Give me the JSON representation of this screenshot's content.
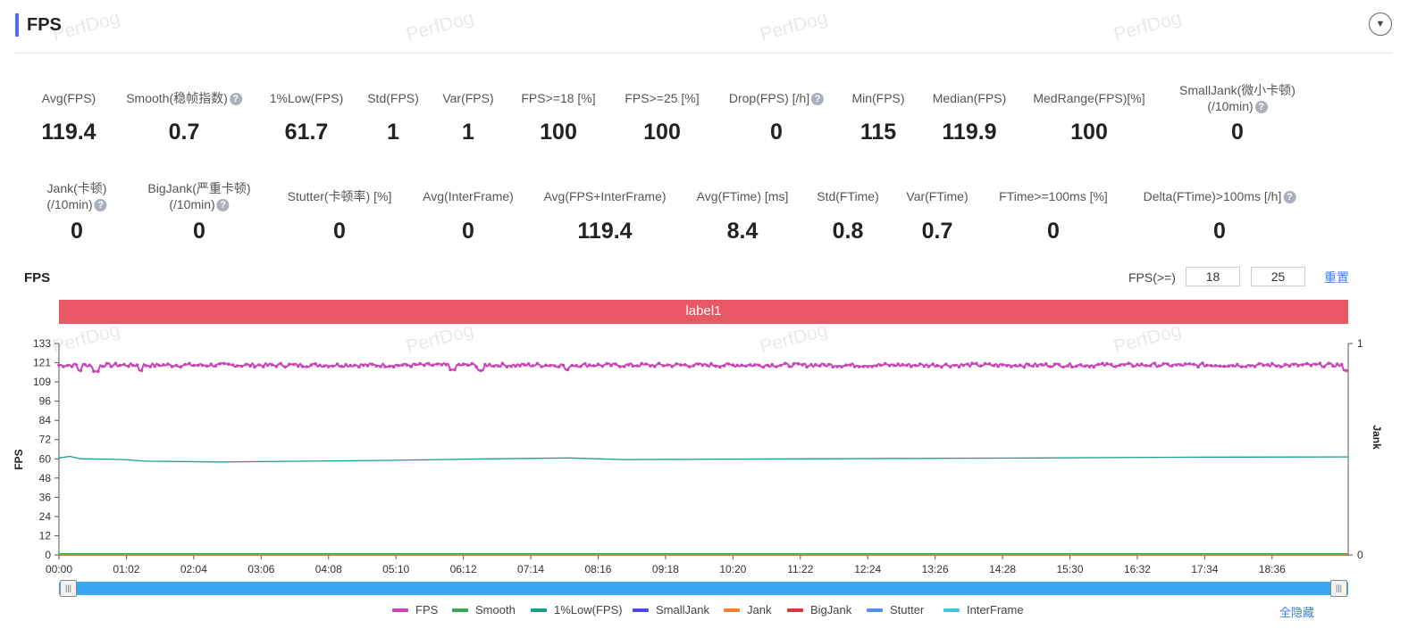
{
  "header": {
    "title": "FPS",
    "watermark": "PerfDog"
  },
  "metrics_row1": [
    {
      "label": "Avg(FPS)",
      "value": "119.4",
      "help": false
    },
    {
      "label": "Smooth(稳帧指数)",
      "value": "0.7",
      "help": true
    },
    {
      "label": "1%Low(FPS)",
      "value": "61.7",
      "help": false
    },
    {
      "label": "Std(FPS)",
      "value": "1",
      "help": false
    },
    {
      "label": "Var(FPS)",
      "value": "1",
      "help": false
    },
    {
      "label": "FPS>=18 [%]",
      "value": "100",
      "help": false
    },
    {
      "label": "FPS>=25 [%]",
      "value": "100",
      "help": false
    },
    {
      "label": "Drop(FPS) [/h]",
      "value": "0",
      "help": true
    },
    {
      "label": "Min(FPS)",
      "value": "115",
      "help": false
    },
    {
      "label": "Median(FPS)",
      "value": "119.9",
      "help": false
    },
    {
      "label": "MedRange(FPS)[%]",
      "value": "100",
      "help": false
    },
    {
      "label": "SmallJank(微小卡顿)",
      "label2": "(/10min)",
      "value": "0",
      "help": true
    }
  ],
  "metrics_row2": [
    {
      "label": "Jank(卡顿)",
      "label2": "(/10min)",
      "value": "0",
      "help": true
    },
    {
      "label": "BigJank(严重卡顿)",
      "label2": "(/10min)",
      "value": "0",
      "help": true
    },
    {
      "label": "Stutter(卡顿率) [%]",
      "value": "0",
      "help": false
    },
    {
      "label": "Avg(InterFrame)",
      "value": "0",
      "help": false
    },
    {
      "label": "Avg(FPS+InterFrame)",
      "value": "119.4",
      "help": false
    },
    {
      "label": "Avg(FTime) [ms]",
      "value": "8.4",
      "help": false
    },
    {
      "label": "Std(FTime)",
      "value": "0.8",
      "help": false
    },
    {
      "label": "Var(FTime)",
      "value": "0.7",
      "help": false
    },
    {
      "label": "FTime>=100ms [%]",
      "value": "0",
      "help": false
    },
    {
      "label": "Delta(FTime)>100ms [/h]",
      "value": "0",
      "help": true
    }
  ],
  "chart_section": {
    "title": "FPS",
    "filter_label": "FPS(>=)",
    "filter_value_1": "18",
    "filter_value_2": "25",
    "reset_label": "重置",
    "band_label": "label1",
    "hide_all_label": "全隐藏"
  },
  "chart_data": {
    "type": "line",
    "ylabel": "FPS",
    "y2label": "Jank",
    "ylim": [
      0,
      133
    ],
    "y_ticks": [
      "0",
      "12",
      "24",
      "36",
      "48",
      "60",
      "72",
      "84",
      "96",
      "109",
      "121",
      "133"
    ],
    "y2lim": [
      0,
      1
    ],
    "y2_ticks": [
      "0",
      "1"
    ],
    "x_ticks": [
      "00:00",
      "01:02",
      "02:04",
      "03:06",
      "04:08",
      "05:10",
      "06:12",
      "07:14",
      "08:16",
      "09:18",
      "10:20",
      "11:22",
      "12:24",
      "13:26",
      "14:28",
      "15:30",
      "16:32",
      "17:34",
      "18:36"
    ],
    "x_range_seconds": [
      0,
      1186
    ],
    "grid": false,
    "legend_position": "bottom",
    "colors": {
      "FPS": "#c944b8",
      "Smooth": "#3aa757",
      "1%Low(FPS)": "#17a08c",
      "SmallJank": "#5147e0",
      "Jank": "#f0842e",
      "BigJank": "#d9363e",
      "Stutter": "#4f8fe6",
      "InterFrame": "#3ec6dd"
    },
    "series": [
      {
        "name": "FPS",
        "approx_mean": 119.4,
        "min": 115,
        "max": 121,
        "dips": [
          {
            "t": 19,
            "v": 116
          },
          {
            "t": 34,
            "v": 115.5
          },
          {
            "t": 75,
            "v": 116
          },
          {
            "t": 362,
            "v": 116.5
          },
          {
            "t": 388,
            "v": 116
          },
          {
            "t": 467,
            "v": 116.5
          },
          {
            "t": 1184,
            "v": 116
          }
        ]
      },
      {
        "name": "1%Low(FPS)",
        "points": [
          [
            0,
            61
          ],
          [
            10,
            62
          ],
          [
            20,
            60.5
          ],
          [
            60,
            60
          ],
          [
            80,
            59
          ],
          [
            150,
            58.5
          ],
          [
            300,
            59.5
          ],
          [
            400,
            60.5
          ],
          [
            470,
            61
          ],
          [
            520,
            60
          ],
          [
            700,
            60.5
          ],
          [
            900,
            61
          ],
          [
            1050,
            61.5
          ],
          [
            1186,
            61.7
          ]
        ]
      },
      {
        "name": "Smooth",
        "constant": 0.7
      },
      {
        "name": "SmallJank",
        "constant": 0
      },
      {
        "name": "Jank",
        "constant": 0
      },
      {
        "name": "BigJank",
        "constant": 0
      },
      {
        "name": "Stutter",
        "constant": 0
      },
      {
        "name": "InterFrame",
        "constant": 0
      }
    ]
  }
}
